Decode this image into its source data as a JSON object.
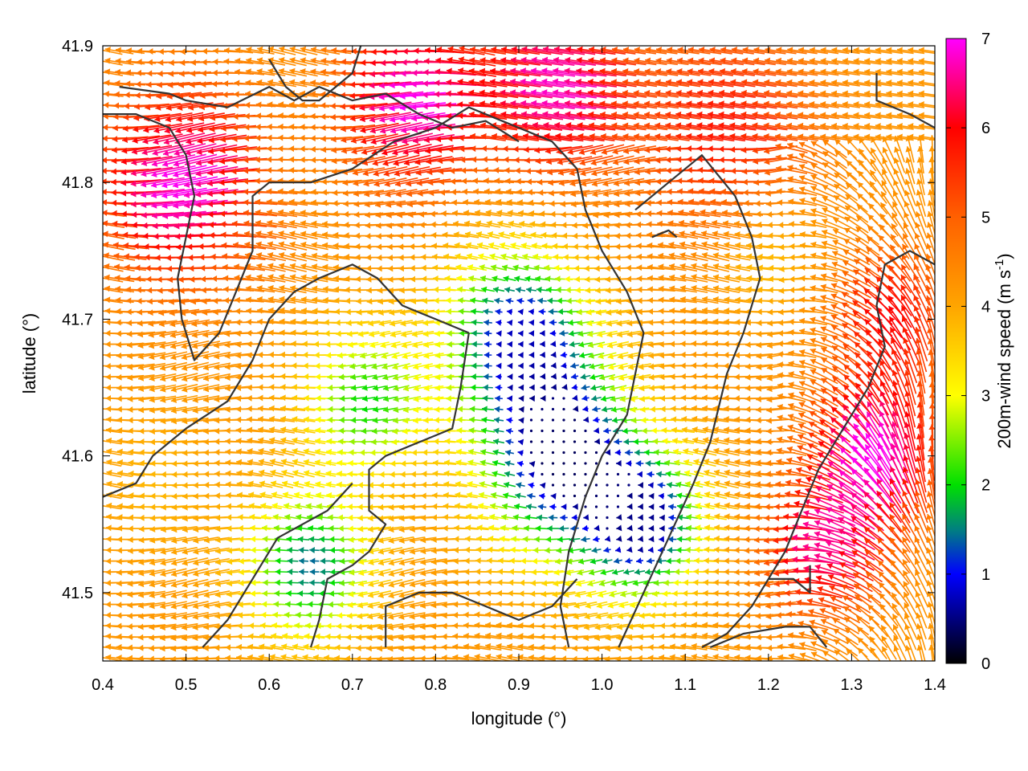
{
  "chart_data": {
    "type": "vector-field",
    "xlabel": "longitude (°)",
    "ylabel": "latitude (°)",
    "xlim": [
      0.4,
      1.4
    ],
    "ylim": [
      41.45,
      41.9
    ],
    "xticks": [
      "0.4",
      "0.5",
      "0.6",
      "0.7",
      "0.8",
      "0.9",
      "1.0",
      "1.1",
      "1.2",
      "1.3",
      "1.4"
    ],
    "yticks": [
      "41.5",
      "41.6",
      "41.7",
      "41.8",
      "41.9"
    ],
    "grid": false,
    "colorbar": {
      "label_main": "200m-wind speed (m s",
      "label_sup": "-1",
      "label_close": ")",
      "range": [
        0,
        7
      ],
      "ticks": [
        "0",
        "1",
        "2",
        "3",
        "4",
        "5",
        "6",
        "7"
      ],
      "palette": [
        {
          "value": 0.0,
          "color": "#000000"
        },
        {
          "value": 1.0,
          "color": "#0000ff"
        },
        {
          "value": 1.5,
          "color": "#008080"
        },
        {
          "value": 2.0,
          "color": "#00e000"
        },
        {
          "value": 3.0,
          "color": "#ffff00"
        },
        {
          "value": 4.0,
          "color": "#ffa500"
        },
        {
          "value": 5.0,
          "color": "#ff6000"
        },
        {
          "value": 6.0,
          "color": "#ff0000"
        },
        {
          "value": 7.0,
          "color": "#ff00ff"
        }
      ]
    },
    "speed_centers": [
      {
        "lon": 0.5,
        "lat": 41.8,
        "speed": 7.0,
        "radius": 0.09
      },
      {
        "lon": 0.78,
        "lat": 41.86,
        "speed": 7.0,
        "radius": 0.08
      },
      {
        "lon": 0.95,
        "lat": 41.87,
        "speed": 6.8,
        "radius": 0.08
      },
      {
        "lon": 1.15,
        "lat": 41.84,
        "speed": 5.8,
        "radius": 0.1
      },
      {
        "lon": 1.33,
        "lat": 41.6,
        "speed": 7.0,
        "radius": 0.07
      },
      {
        "lon": 1.27,
        "lat": 41.53,
        "speed": 6.5,
        "radius": 0.06
      },
      {
        "lon": 1.35,
        "lat": 41.7,
        "speed": 6.0,
        "radius": 0.06
      },
      {
        "lon": 0.95,
        "lat": 41.6,
        "speed": 0.3,
        "radius": 0.09
      },
      {
        "lon": 0.9,
        "lat": 41.69,
        "speed": 0.8,
        "radius": 0.08
      },
      {
        "lon": 1.05,
        "lat": 41.55,
        "speed": 0.6,
        "radius": 0.07
      },
      {
        "lon": 0.65,
        "lat": 41.52,
        "speed": 1.4,
        "radius": 0.07
      },
      {
        "lon": 0.72,
        "lat": 41.64,
        "speed": 2.0,
        "radius": 0.07
      },
      {
        "lon": 0.47,
        "lat": 41.58,
        "speed": 3.8,
        "radius": 0.07
      },
      {
        "lon": 1.2,
        "lat": 41.75,
        "speed": 3.5,
        "radius": 0.06
      }
    ],
    "coastlines": [
      [
        [
          0.42,
          41.87
        ],
        [
          0.48,
          41.865
        ],
        [
          0.5,
          41.86
        ],
        [
          0.55,
          41.855
        ],
        [
          0.6,
          41.87
        ],
        [
          0.63,
          41.86
        ],
        [
          0.66,
          41.87
        ],
        [
          0.7,
          41.86
        ],
        [
          0.74,
          41.865
        ],
        [
          0.78,
          41.85
        ],
        [
          0.82,
          41.84
        ],
        [
          0.86,
          41.845
        ],
        [
          0.9,
          41.83
        ]
      ],
      [
        [
          0.4,
          41.85
        ],
        [
          0.44,
          41.85
        ],
        [
          0.48,
          41.84
        ],
        [
          0.5,
          41.82
        ],
        [
          0.51,
          41.79
        ],
        [
          0.5,
          41.76
        ],
        [
          0.49,
          41.73
        ],
        [
          0.495,
          41.7
        ],
        [
          0.51,
          41.67
        ],
        [
          0.54,
          41.69
        ],
        [
          0.56,
          41.72
        ],
        [
          0.58,
          41.75
        ],
        [
          0.58,
          41.79
        ],
        [
          0.6,
          41.8
        ],
        [
          0.65,
          41.8
        ],
        [
          0.7,
          41.81
        ],
        [
          0.75,
          41.83
        ],
        [
          0.8,
          41.84
        ],
        [
          0.84,
          41.855
        ],
        [
          0.9,
          41.84
        ],
        [
          0.94,
          41.83
        ],
        [
          0.97,
          41.81
        ]
      ],
      [
        [
          0.6,
          41.89
        ],
        [
          0.62,
          41.87
        ],
        [
          0.64,
          41.86
        ],
        [
          0.66,
          41.86
        ],
        [
          0.68,
          41.87
        ],
        [
          0.7,
          41.88
        ],
        [
          0.71,
          41.9
        ]
      ],
      [
        [
          0.4,
          41.57
        ],
        [
          0.44,
          41.58
        ],
        [
          0.46,
          41.6
        ],
        [
          0.5,
          41.62
        ],
        [
          0.55,
          41.64
        ],
        [
          0.58,
          41.67
        ],
        [
          0.6,
          41.7
        ],
        [
          0.63,
          41.72
        ],
        [
          0.66,
          41.73
        ],
        [
          0.7,
          41.74
        ],
        [
          0.73,
          41.73
        ],
        [
          0.76,
          41.71
        ],
        [
          0.8,
          41.7
        ],
        [
          0.84,
          41.69
        ]
      ],
      [
        [
          0.84,
          41.69
        ],
        [
          0.83,
          41.65
        ],
        [
          0.82,
          41.62
        ],
        [
          0.78,
          41.61
        ],
        [
          0.74,
          41.6
        ],
        [
          0.72,
          41.59
        ],
        [
          0.72,
          41.56
        ],
        [
          0.74,
          41.55
        ],
        [
          0.72,
          41.53
        ],
        [
          0.7,
          41.52
        ],
        [
          0.67,
          41.51
        ],
        [
          0.66,
          41.48
        ],
        [
          0.65,
          41.46
        ]
      ],
      [
        [
          0.52,
          41.46
        ],
        [
          0.55,
          41.48
        ],
        [
          0.58,
          41.51
        ],
        [
          0.61,
          41.54
        ],
        [
          0.64,
          41.55
        ],
        [
          0.67,
          41.56
        ],
        [
          0.7,
          41.58
        ]
      ],
      [
        [
          0.74,
          41.46
        ],
        [
          0.74,
          41.49
        ],
        [
          0.78,
          41.5
        ],
        [
          0.82,
          41.5
        ],
        [
          0.86,
          41.49
        ],
        [
          0.9,
          41.48
        ],
        [
          0.94,
          41.49
        ],
        [
          0.97,
          41.51
        ]
      ],
      [
        [
          0.97,
          41.81
        ],
        [
          0.98,
          41.78
        ],
        [
          1.0,
          41.75
        ],
        [
          1.03,
          41.72
        ],
        [
          1.05,
          41.69
        ],
        [
          1.04,
          41.66
        ],
        [
          1.03,
          41.63
        ],
        [
          1.0,
          41.6
        ],
        [
          0.98,
          41.57
        ],
        [
          0.96,
          41.53
        ],
        [
          0.95,
          41.49
        ],
        [
          0.96,
          41.46
        ]
      ],
      [
        [
          1.04,
          41.78
        ],
        [
          1.08,
          41.8
        ],
        [
          1.12,
          41.82
        ],
        [
          1.16,
          41.79
        ],
        [
          1.18,
          41.76
        ],
        [
          1.19,
          41.73
        ],
        [
          1.17,
          41.69
        ],
        [
          1.15,
          41.66
        ],
        [
          1.13,
          41.61
        ],
        [
          1.11,
          41.58
        ],
        [
          1.08,
          41.54
        ],
        [
          1.05,
          41.5
        ],
        [
          1.02,
          41.46
        ]
      ],
      [
        [
          1.06,
          41.76
        ],
        [
          1.08,
          41.765
        ],
        [
          1.09,
          41.76
        ]
      ],
      [
        [
          1.4,
          41.74
        ],
        [
          1.37,
          41.75
        ],
        [
          1.34,
          41.74
        ],
        [
          1.33,
          41.71
        ],
        [
          1.34,
          41.68
        ],
        [
          1.32,
          41.65
        ],
        [
          1.3,
          41.63
        ],
        [
          1.28,
          41.61
        ],
        [
          1.26,
          41.59
        ],
        [
          1.24,
          41.56
        ],
        [
          1.22,
          41.53
        ],
        [
          1.2,
          41.51
        ],
        [
          1.18,
          41.49
        ],
        [
          1.15,
          41.47
        ],
        [
          1.12,
          41.46
        ]
      ],
      [
        [
          1.2,
          41.51
        ],
        [
          1.23,
          41.51
        ],
        [
          1.25,
          41.5
        ],
        [
          1.25,
          41.52
        ]
      ],
      [
        [
          1.13,
          41.46
        ],
        [
          1.17,
          41.47
        ],
        [
          1.22,
          41.475
        ],
        [
          1.25,
          41.475
        ],
        [
          1.27,
          41.46
        ]
      ],
      [
        [
          1.33,
          41.88
        ],
        [
          1.33,
          41.86
        ],
        [
          1.37,
          41.85
        ],
        [
          1.4,
          41.84
        ]
      ]
    ]
  }
}
